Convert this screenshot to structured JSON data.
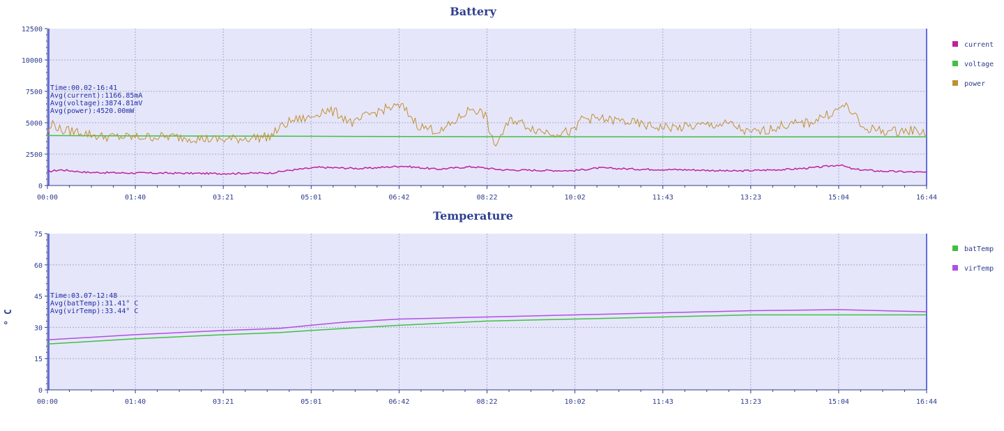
{
  "chart_data": [
    {
      "type": "line",
      "title": "Battery",
      "ylabel": "",
      "ylim": [
        0,
        12500
      ],
      "yticks": [
        "12500",
        "10000",
        "7500",
        "5000",
        "2500",
        "0"
      ],
      "xticks": [
        "00:00",
        "01:40",
        "03:21",
        "05:01",
        "06:42",
        "08:22",
        "10:02",
        "11:43",
        "13:23",
        "15:04",
        "16:44"
      ],
      "xlim_minutes": [
        0,
        1004
      ],
      "grid": true,
      "legend_position": "right",
      "info": [
        "Time:00.02-16:41",
        "Avg(current):1166.85mA",
        "Avg(voltage):3874.81mV",
        "Avg(power):4520.00mW"
      ],
      "series": [
        {
          "name": "current",
          "color": "#c020a0",
          "x": [
            "00:00",
            "00:15",
            "00:45",
            "01:30",
            "02:30",
            "03:15",
            "04:15",
            "04:35",
            "05:10",
            "06:00",
            "06:45",
            "07:25",
            "08:05",
            "08:40",
            "09:30",
            "10:00",
            "10:30",
            "11:15",
            "12:15",
            "13:05",
            "14:10",
            "14:40",
            "15:05",
            "15:20",
            "15:50",
            "16:40"
          ],
          "values": [
            1100,
            1250,
            1050,
            1000,
            980,
            950,
            1000,
            1200,
            1450,
            1350,
            1550,
            1300,
            1500,
            1250,
            1200,
            1180,
            1400,
            1300,
            1250,
            1150,
            1300,
            1450,
            1650,
            1300,
            1150,
            1050
          ]
        },
        {
          "name": "voltage",
          "color": "#40c040",
          "x": [
            "00:00",
            "01:40",
            "03:21",
            "05:01",
            "06:42",
            "08:22",
            "10:02",
            "11:43",
            "13:23",
            "15:04",
            "16:44"
          ],
          "values": [
            3980,
            3950,
            3940,
            3920,
            3900,
            3890,
            3885,
            3880,
            3880,
            3880,
            3880
          ]
        },
        {
          "name": "power",
          "color": "#c09030",
          "x": [
            "00:00",
            "00:06",
            "00:15",
            "00:35",
            "01:00",
            "01:40",
            "02:20",
            "03:00",
            "03:21",
            "04:15",
            "04:25",
            "04:40",
            "05:00",
            "05:15",
            "05:30",
            "05:50",
            "06:05",
            "06:30",
            "06:45",
            "07:05",
            "07:30",
            "07:45",
            "08:05",
            "08:20",
            "08:30",
            "08:50",
            "09:20",
            "09:40",
            "10:02",
            "10:10",
            "10:30",
            "11:00",
            "11:30",
            "12:00",
            "12:30",
            "13:00",
            "13:20",
            "13:35",
            "14:00",
            "14:30",
            "14:45",
            "15:00",
            "15:10",
            "15:20",
            "15:30",
            "16:00",
            "16:30",
            "16:44"
          ],
          "values": [
            4000,
            5000,
            4400,
            4300,
            3900,
            3850,
            3900,
            3700,
            3650,
            3900,
            4600,
            5200,
            5400,
            6000,
            5800,
            4900,
            5600,
            6200,
            6300,
            4700,
            4300,
            5100,
            6200,
            5600,
            3100,
            5300,
            4400,
            4200,
            4300,
            5400,
            5300,
            5100,
            4700,
            4600,
            4800,
            4900,
            4200,
            4300,
            4800,
            5000,
            5500,
            5900,
            6400,
            5800,
            4600,
            4300,
            4400,
            4200
          ]
        }
      ]
    },
    {
      "type": "line",
      "title": "Temperature",
      "ylabel": "° C",
      "ylim": [
        0,
        75
      ],
      "yticks": [
        "75",
        "60",
        "45",
        "30",
        "15",
        "0"
      ],
      "xticks": [
        "00:00",
        "01:40",
        "03:21",
        "05:01",
        "06:42",
        "08:22",
        "10:02",
        "11:43",
        "13:23",
        "15:04",
        "16:44"
      ],
      "xlim_minutes": [
        0,
        1004
      ],
      "grid": true,
      "legend_position": "right",
      "info": [
        "Time:03.07-12:48",
        "Avg(batTemp):31.41° C",
        "Avg(virTemp):33.44° C"
      ],
      "series": [
        {
          "name": "batTemp",
          "color": "#40c040",
          "x": [
            "00:00",
            "01:40",
            "03:21",
            "04:25",
            "05:01",
            "05:40",
            "06:42",
            "08:22",
            "10:02",
            "11:43",
            "13:23",
            "15:04",
            "16:44"
          ],
          "values": [
            22,
            24.5,
            26.5,
            27.5,
            28.5,
            29.5,
            31,
            33,
            34,
            35,
            36,
            36,
            36
          ]
        },
        {
          "name": "virTemp",
          "color": "#b050e0",
          "x": [
            "00:00",
            "01:40",
            "03:21",
            "04:25",
            "05:01",
            "05:40",
            "06:42",
            "08:22",
            "10:02",
            "11:43",
            "13:23",
            "15:04",
            "16:44"
          ],
          "values": [
            24,
            26.5,
            28.5,
            29.5,
            31,
            32.5,
            34,
            35,
            36,
            37,
            38,
            38.5,
            37.5
          ]
        }
      ]
    }
  ]
}
